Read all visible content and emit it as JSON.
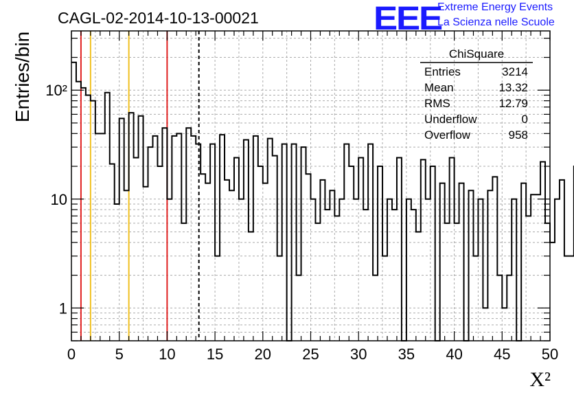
{
  "header": {
    "run_title": "CAGL-02-2014-10-13-00021",
    "logo_letters": "EEE",
    "logo_line1": "Extreme Energy Events",
    "logo_line2": "La Scienza nelle Scuole"
  },
  "stats": {
    "name": "ChiSquare",
    "rows": [
      {
        "label": "Entries",
        "value": "3214"
      },
      {
        "label": "Mean",
        "value": "13.32"
      },
      {
        "label": "RMS",
        "value": "12.79"
      },
      {
        "label": "Underflow",
        "value": "0"
      },
      {
        "label": "Overflow",
        "value": "958"
      }
    ]
  },
  "chart_data": {
    "type": "histogram",
    "xlabel": "X²",
    "ylabel": "Entries/bin",
    "xlim": [
      0,
      50
    ],
    "ylim": [
      0.5,
      350
    ],
    "yscale": "log",
    "grid": true,
    "bin_width": 0.5,
    "bin_edges_start": 0,
    "values": [
      180,
      120,
      105,
      90,
      80,
      40,
      40,
      95,
      21,
      9,
      55,
      12,
      62,
      24,
      58,
      13,
      30,
      38,
      20,
      45,
      10,
      38,
      40,
      6,
      45,
      38,
      32,
      17,
      14,
      32,
      3,
      39,
      15,
      12,
      24,
      10,
      35,
      5,
      38,
      20,
      14,
      36,
      25,
      3,
      32,
      0.4,
      32,
      2,
      30,
      17,
      10,
      6,
      15,
      8,
      12,
      7,
      10,
      32,
      20,
      10,
      24,
      8,
      32,
      2,
      20,
      3,
      10,
      8,
      24,
      0.4,
      10,
      8,
      5,
      23,
      10,
      20,
      0.4,
      14,
      6,
      24,
      6,
      14,
      0.4,
      12,
      3,
      10,
      1,
      12,
      16,
      2,
      1,
      2,
      10,
      0.4,
      14,
      7,
      11,
      11,
      22,
      6,
      4,
      10,
      15,
      3,
      3,
      20,
      0.4,
      2,
      2,
      12,
      1,
      8,
      1,
      10,
      12,
      3,
      8,
      8,
      4,
      12,
      0.4,
      6,
      13,
      2,
      12,
      3,
      13,
      2,
      10,
      0.4,
      1,
      4,
      8,
      8,
      9,
      12,
      9,
      6,
      10,
      0.4,
      12,
      10,
      3,
      14,
      12,
      0.4,
      4,
      6,
      12,
      10,
      3,
      12,
      2,
      4,
      15,
      12,
      0.4,
      4,
      12,
      7,
      8,
      12,
      10,
      3,
      2,
      9,
      12,
      0.4,
      1,
      10,
      13,
      0.4,
      13,
      3,
      10,
      11,
      8,
      12,
      0.4,
      14,
      2,
      10,
      8,
      10,
      10,
      3,
      13,
      1,
      8,
      14,
      11,
      12,
      4,
      13,
      0.4,
      12,
      10,
      0.4,
      13,
      5,
      10,
      12,
      2,
      14,
      12,
      1,
      4,
      12,
      0.4,
      13,
      7,
      9,
      7,
      11
    ],
    "xticks": [
      0,
      5,
      10,
      15,
      20,
      25,
      30,
      35,
      40,
      45,
      50
    ],
    "yticks": [
      1,
      10,
      100
    ],
    "ytick_labels": [
      "1",
      "10",
      "10²"
    ],
    "vlines": [
      {
        "x": 1,
        "color": "#e02020",
        "style": "solid"
      },
      {
        "x": 2,
        "color": "#f0c020",
        "style": "solid"
      },
      {
        "x": 6,
        "color": "#f0c020",
        "style": "solid"
      },
      {
        "x": 10,
        "color": "#e02020",
        "style": "solid"
      },
      {
        "x": 13.32,
        "color": "#000000",
        "style": "dashed"
      }
    ]
  },
  "colors": {
    "logo": "#1a1aff"
  }
}
